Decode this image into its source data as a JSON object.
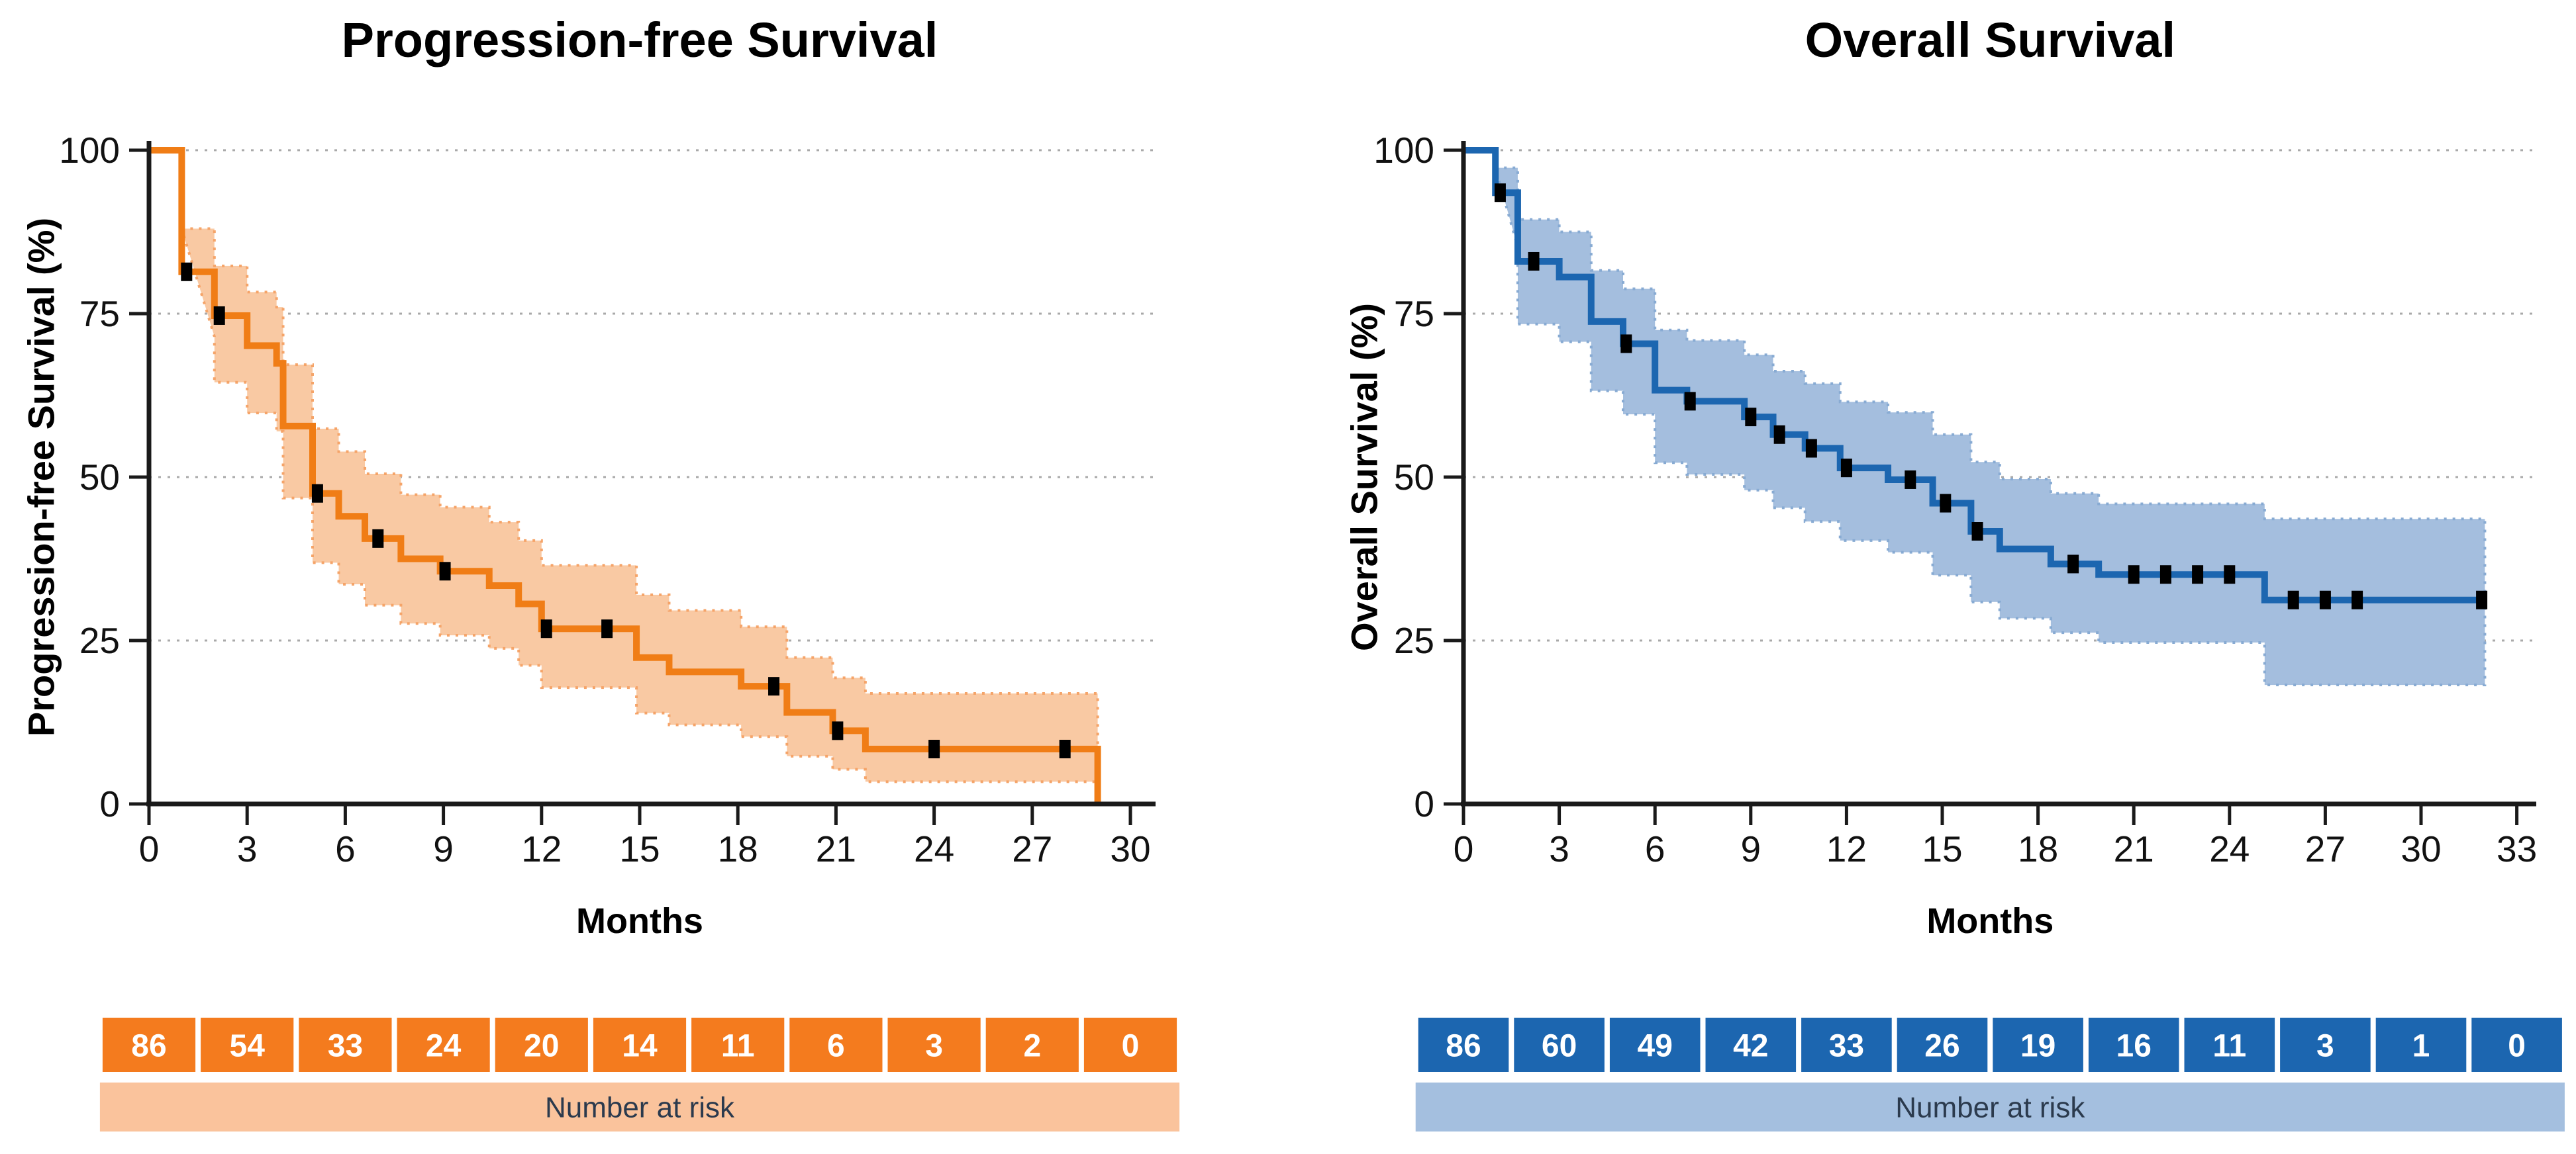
{
  "chart_data": [
    {
      "type": "line",
      "subtype": "kaplan-meier-step",
      "title": "Progression-free Survival",
      "xlabel": "Months",
      "ylabel": "Progression-free Survival (%)",
      "x_ticks": [
        0,
        3,
        6,
        9,
        12,
        15,
        18,
        21,
        24,
        27,
        30
      ],
      "y_ticks": [
        0,
        25,
        50,
        75,
        100
      ],
      "xlim": [
        0,
        30
      ],
      "ylim": [
        0,
        100
      ],
      "grid": "horizontal-dotted",
      "legend": "none",
      "colors": {
        "line": "#F07D16",
        "band_fill": "#F9C9A3",
        "band_edge": "#F5A469",
        "censor": "#000000",
        "risk_box": "#F47B1E",
        "risk_band": "#FAC39C",
        "axis": "#1a1a1a",
        "grid": "#A9A9A9"
      },
      "series": {
        "start": {
          "t": 0,
          "s": 100
        },
        "steps": [
          {
            "t": 1.0,
            "s": 81.4,
            "lo": 71.5,
            "hi": 88.0
          },
          {
            "t": 2.0,
            "s": 74.7,
            "lo": 64.5,
            "hi": 82.3
          },
          {
            "t": 3.0,
            "s": 70.1,
            "lo": 59.8,
            "hi": 78.3
          },
          {
            "t": 3.9,
            "s": 67.4,
            "lo": 57.0,
            "hi": 76.0
          },
          {
            "t": 4.1,
            "s": 57.8,
            "lo": 46.8,
            "hi": 67.2
          },
          {
            "t": 5.0,
            "s": 47.5,
            "lo": 36.9,
            "hi": 57.4
          },
          {
            "t": 5.8,
            "s": 44.0,
            "lo": 33.6,
            "hi": 53.9
          },
          {
            "t": 6.6,
            "s": 40.6,
            "lo": 30.4,
            "hi": 50.5
          },
          {
            "t": 7.7,
            "s": 37.5,
            "lo": 27.6,
            "hi": 47.3
          },
          {
            "t": 8.9,
            "s": 35.6,
            "lo": 25.8,
            "hi": 45.4
          },
          {
            "t": 10.4,
            "s": 33.4,
            "lo": 23.8,
            "hi": 43.1
          },
          {
            "t": 11.3,
            "s": 30.6,
            "lo": 21.2,
            "hi": 40.3
          },
          {
            "t": 12.0,
            "s": 26.8,
            "lo": 17.8,
            "hi": 36.5
          },
          {
            "t": 14.9,
            "s": 22.4,
            "lo": 13.9,
            "hi": 32.0
          },
          {
            "t": 15.9,
            "s": 20.2,
            "lo": 12.1,
            "hi": 29.6
          },
          {
            "t": 18.1,
            "s": 18.0,
            "lo": 10.3,
            "hi": 27.1
          },
          {
            "t": 19.5,
            "s": 14.0,
            "lo": 7.3,
            "hi": 22.4
          },
          {
            "t": 20.9,
            "s": 11.2,
            "lo": 5.3,
            "hi": 19.3
          },
          {
            "t": 21.9,
            "s": 8.4,
            "lo": 3.4,
            "hi": 16.9
          }
        ],
        "end_t": 29.0,
        "drops_to_zero": true,
        "censor_marks": [
          {
            "t": 1.15,
            "s": 81.4
          },
          {
            "t": 2.15,
            "s": 74.7
          },
          {
            "t": 5.15,
            "s": 47.5
          },
          {
            "t": 7.0,
            "s": 40.6
          },
          {
            "t": 9.05,
            "s": 35.6
          },
          {
            "t": 12.15,
            "s": 26.8
          },
          {
            "t": 14.0,
            "s": 26.8
          },
          {
            "t": 19.1,
            "s": 18.0
          },
          {
            "t": 21.05,
            "s": 11.2
          },
          {
            "t": 24.0,
            "s": 8.4
          },
          {
            "t": 28.0,
            "s": 8.4
          }
        ]
      },
      "number_at_risk": {
        "label": "Number at risk",
        "times": [
          0,
          3,
          6,
          9,
          12,
          15,
          18,
          21,
          24,
          27,
          30
        ],
        "values": [
          86,
          54,
          33,
          24,
          20,
          14,
          11,
          6,
          3,
          2,
          0
        ]
      }
    },
    {
      "type": "line",
      "subtype": "kaplan-meier-step",
      "title": "Overall Survival",
      "xlabel": "Months",
      "ylabel": "Overall Survival (%)",
      "x_ticks": [
        0,
        3,
        6,
        9,
        12,
        15,
        18,
        21,
        24,
        27,
        30,
        33
      ],
      "y_ticks": [
        0,
        25,
        50,
        75,
        100
      ],
      "xlim": [
        0,
        33
      ],
      "ylim": [
        0,
        100
      ],
      "grid": "horizontal-dotted",
      "legend": "none",
      "colors": {
        "line": "#1C66B0",
        "band_fill": "#A4BEDE",
        "band_edge": "#88ABD3",
        "censor": "#000000",
        "risk_box": "#1C66B0",
        "risk_band": "#A4BFDF",
        "axis": "#1a1a1a",
        "grid": "#A9A9A9"
      },
      "series": {
        "start": {
          "t": 0,
          "s": 100
        },
        "steps": [
          {
            "t": 1.0,
            "s": 93.5,
            "lo": 85.2,
            "hi": 97.3
          },
          {
            "t": 1.7,
            "s": 83.0,
            "lo": 73.4,
            "hi": 89.4
          },
          {
            "t": 3.0,
            "s": 80.6,
            "lo": 70.7,
            "hi": 87.5
          },
          {
            "t": 4.0,
            "s": 73.8,
            "lo": 63.2,
            "hi": 81.6
          },
          {
            "t": 5.0,
            "s": 70.4,
            "lo": 59.6,
            "hi": 78.8
          },
          {
            "t": 6.0,
            "s": 63.3,
            "lo": 52.2,
            "hi": 72.5
          },
          {
            "t": 7.0,
            "s": 61.6,
            "lo": 50.4,
            "hi": 70.9
          },
          {
            "t": 8.8,
            "s": 59.2,
            "lo": 48.0,
            "hi": 68.7
          },
          {
            "t": 9.7,
            "s": 56.5,
            "lo": 45.3,
            "hi": 66.2
          },
          {
            "t": 10.7,
            "s": 54.4,
            "lo": 43.2,
            "hi": 64.3
          },
          {
            "t": 11.8,
            "s": 51.4,
            "lo": 40.3,
            "hi": 61.5
          },
          {
            "t": 13.3,
            "s": 49.6,
            "lo": 38.5,
            "hi": 59.9
          },
          {
            "t": 14.7,
            "s": 46.0,
            "lo": 35.0,
            "hi": 56.5
          },
          {
            "t": 15.9,
            "s": 41.7,
            "lo": 30.9,
            "hi": 52.3
          },
          {
            "t": 16.8,
            "s": 39.0,
            "lo": 28.4,
            "hi": 49.7
          },
          {
            "t": 18.4,
            "s": 36.7,
            "lo": 26.2,
            "hi": 47.5
          },
          {
            "t": 19.9,
            "s": 35.1,
            "lo": 24.7,
            "hi": 45.9
          },
          {
            "t": 25.1,
            "s": 31.2,
            "lo": 18.2,
            "hi": 43.6
          }
        ],
        "end_t": 32.0,
        "drops_to_zero": false,
        "censor_marks": [
          {
            "t": 1.15,
            "s": 93.5
          },
          {
            "t": 2.2,
            "s": 83.0
          },
          {
            "t": 5.1,
            "s": 70.4
          },
          {
            "t": 7.1,
            "s": 61.6
          },
          {
            "t": 9.0,
            "s": 59.2
          },
          {
            "t": 9.9,
            "s": 56.5
          },
          {
            "t": 10.9,
            "s": 54.4
          },
          {
            "t": 12.0,
            "s": 51.4
          },
          {
            "t": 14.0,
            "s": 49.6
          },
          {
            "t": 15.1,
            "s": 46.0
          },
          {
            "t": 16.1,
            "s": 41.7
          },
          {
            "t": 19.1,
            "s": 36.7
          },
          {
            "t": 21.0,
            "s": 35.1
          },
          {
            "t": 22.0,
            "s": 35.1
          },
          {
            "t": 23.0,
            "s": 35.1
          },
          {
            "t": 24.0,
            "s": 35.1
          },
          {
            "t": 26.0,
            "s": 31.2
          },
          {
            "t": 27.0,
            "s": 31.2
          },
          {
            "t": 28.0,
            "s": 31.2
          },
          {
            "t": 31.9,
            "s": 31.2
          }
        ]
      },
      "number_at_risk": {
        "label": "Number at risk",
        "times": [
          0,
          3,
          6,
          9,
          12,
          15,
          18,
          21,
          24,
          27,
          30,
          33
        ],
        "values": [
          86,
          60,
          49,
          42,
          33,
          26,
          19,
          16,
          11,
          3,
          1,
          0
        ]
      }
    }
  ]
}
